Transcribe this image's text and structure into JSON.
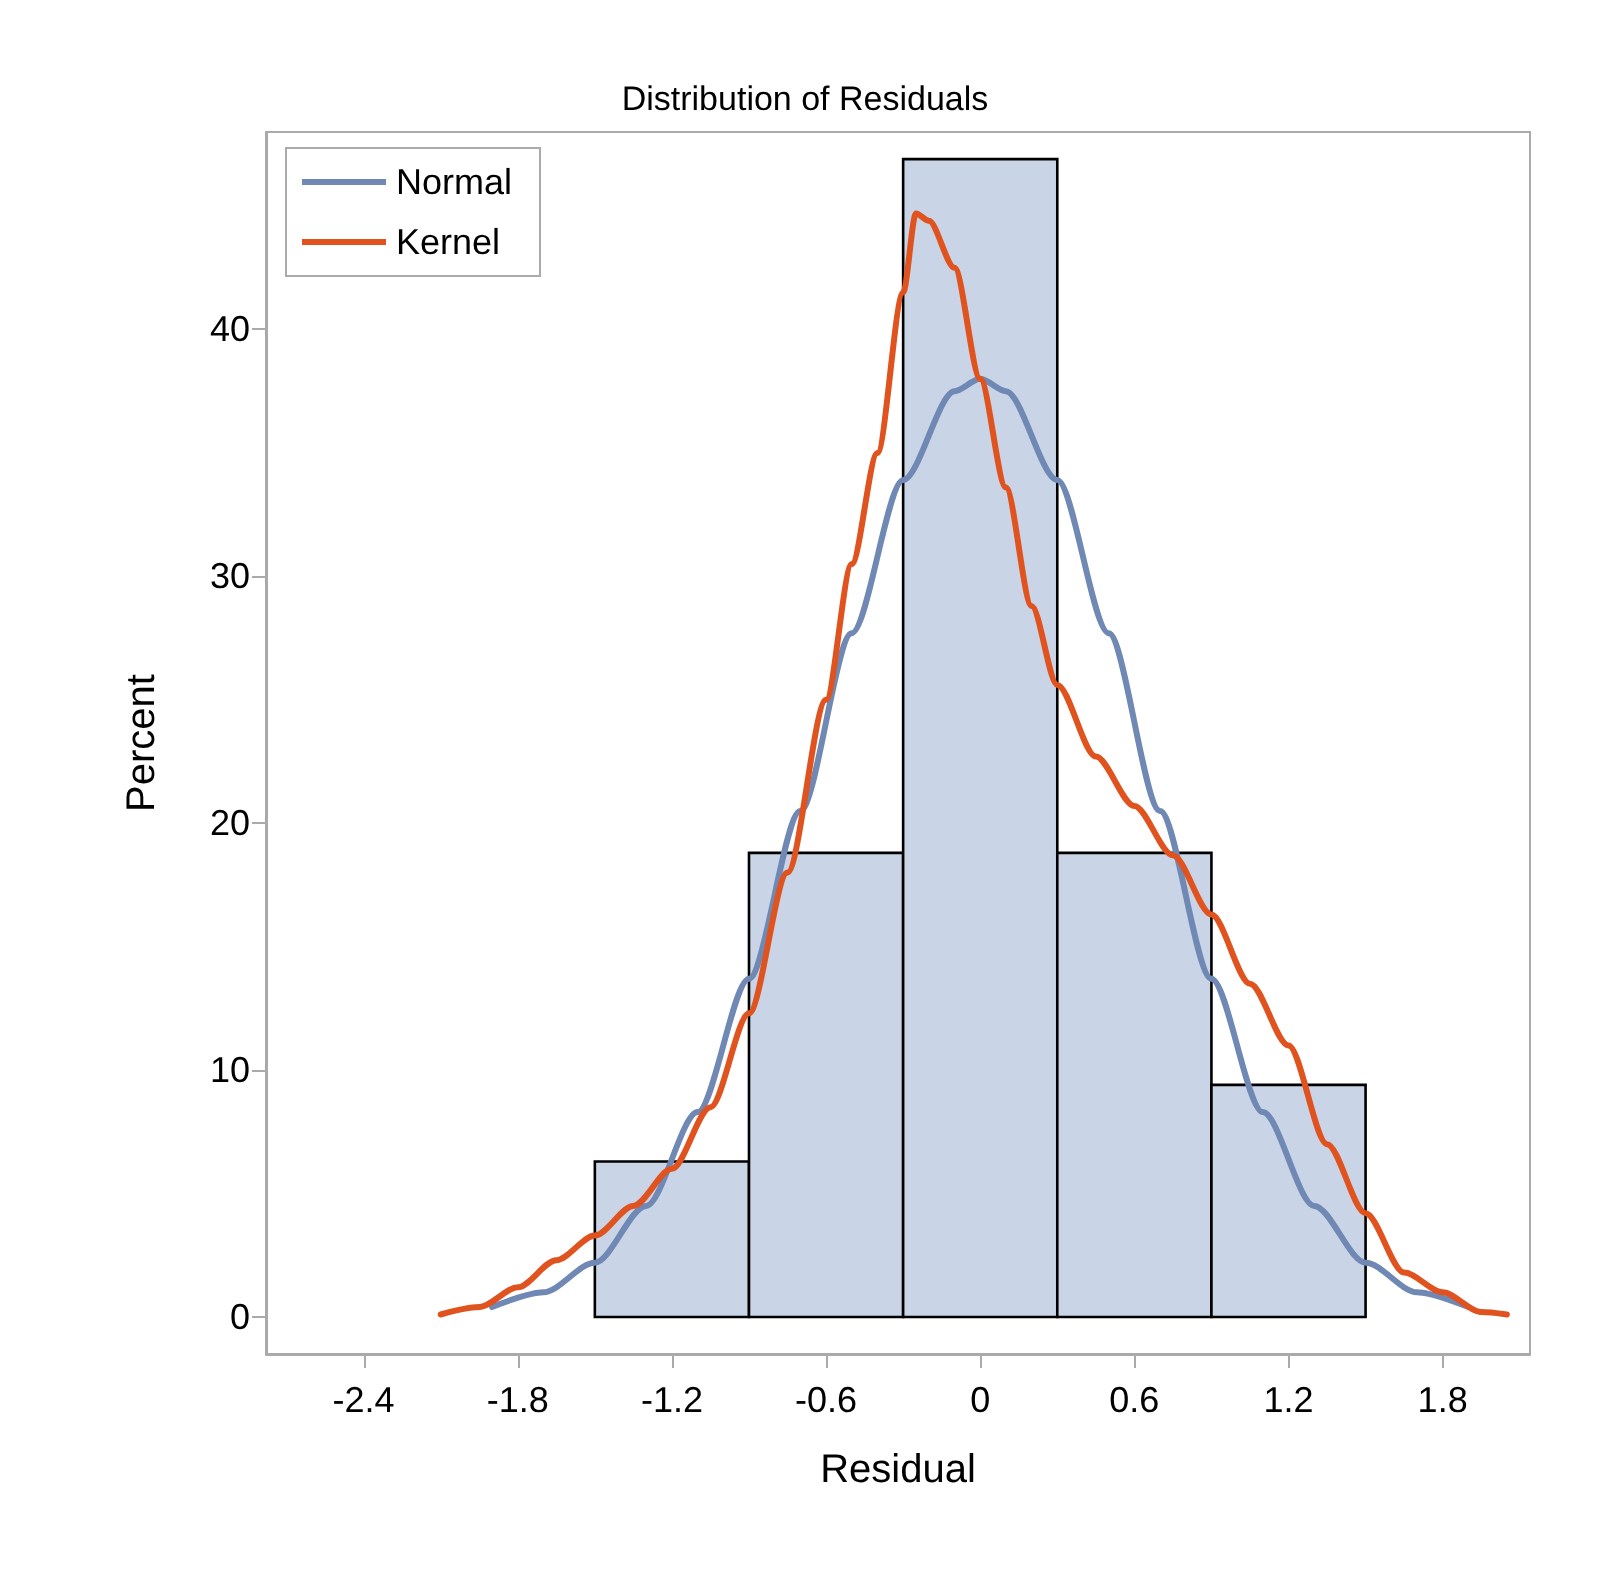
{
  "chart_data": {
    "type": "histogram",
    "title": "Distribution of Residuals",
    "xlabel": "Residual",
    "ylabel": "Percent",
    "bins": [
      -1.5,
      -0.9,
      -0.3,
      0.3,
      0.9,
      1.5
    ],
    "values": [
      6.3,
      18.8,
      46.9,
      18.8,
      9.4
    ],
    "color": "#c9d4e6",
    "series": [
      {
        "type": "line",
        "name": "Normal",
        "color": "#6f88b4",
        "x": [
          -1.9,
          -1.7,
          -1.5,
          -1.3,
          -1.1,
          -0.9,
          -0.7,
          -0.5,
          -0.3,
          -0.1,
          0,
          0.1,
          0.3,
          0.5,
          0.7,
          0.9,
          1.1,
          1.3,
          1.5,
          1.7,
          1.9
        ],
        "values": [
          0.4,
          1.0,
          2.2,
          4.5,
          8.3,
          13.7,
          20.5,
          27.7,
          33.9,
          37.5,
          38,
          37.5,
          33.9,
          27.7,
          20.5,
          13.7,
          8.3,
          4.5,
          2.2,
          1.0,
          0.4
        ]
      },
      {
        "type": "line",
        "name": "Kernel",
        "color": "#e0531f",
        "x": [
          -2.1,
          -1.95,
          -1.8,
          -1.65,
          -1.5,
          -1.35,
          -1.2,
          -1.05,
          -0.9,
          -0.75,
          -0.6,
          -0.5,
          -0.4,
          -0.3,
          -0.25,
          -0.2,
          -0.1,
          0,
          0.1,
          0.2,
          0.3,
          0.45,
          0.6,
          0.75,
          0.9,
          1.05,
          1.2,
          1.35,
          1.5,
          1.65,
          1.8,
          1.95,
          2.05
        ],
        "values": [
          0.1,
          0.4,
          1.2,
          2.3,
          3.3,
          4.5,
          6.0,
          8.5,
          12.3,
          18,
          25,
          30.5,
          35,
          41.5,
          44.7,
          44.4,
          42.5,
          38,
          33.6,
          28.8,
          25.6,
          22.7,
          20.7,
          18.7,
          16.3,
          13.5,
          11,
          7,
          4.2,
          1.8,
          1.0,
          0.2,
          0.1
        ]
      }
    ],
    "xlim": [
      -2.78,
      2.14
    ],
    "xticks": [
      -2.4,
      -1.8,
      -1.2,
      -0.6,
      0,
      0.6,
      1.2,
      1.8
    ],
    "ylim": [
      -1.5,
      48
    ],
    "yticks": [
      0,
      10,
      20,
      30,
      40
    ],
    "grid": false,
    "legend": "top left"
  }
}
